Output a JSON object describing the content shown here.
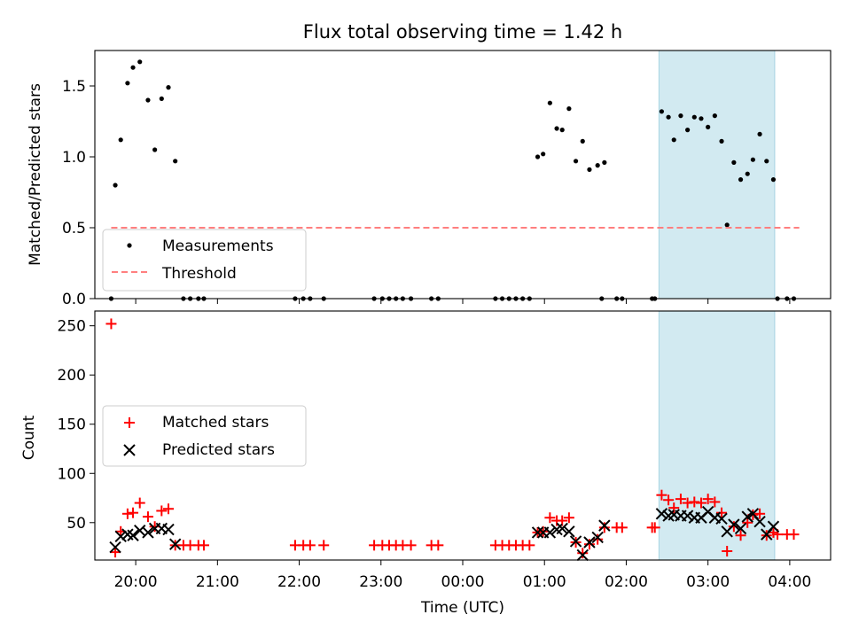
{
  "chart_data": [
    {
      "type": "scatter",
      "title": "Flux total observing time = 1.42 h",
      "xlabel": "",
      "ylabel": "Matched/Predicted stars",
      "ylim": [
        0,
        1.75
      ],
      "xlim": [
        "19:30",
        "04:30"
      ],
      "yticks": [
        0.0,
        0.5,
        1.0,
        1.5
      ],
      "ytick_labels": [
        "0.0",
        "0.5",
        "1.0",
        "1.5"
      ],
      "highlight_span": [
        "02:24",
        "03:49"
      ],
      "highlight_color": "#add8e6",
      "legend_position": "lower-left",
      "series": [
        {
          "name": "Measurements",
          "marker": "dot",
          "color": "#000000",
          "points": [
            [
              "19:42",
              0.0
            ],
            [
              "19:45",
              0.8
            ],
            [
              "19:49",
              1.12
            ],
            [
              "19:54",
              1.52
            ],
            [
              "19:58",
              1.63
            ],
            [
              "20:03",
              1.67
            ],
            [
              "20:09",
              1.4
            ],
            [
              "20:14",
              1.05
            ],
            [
              "20:19",
              1.41
            ],
            [
              "20:24",
              1.49
            ],
            [
              "20:29",
              0.97
            ],
            [
              "20:35",
              0.0
            ],
            [
              "20:40",
              0.0
            ],
            [
              "20:46",
              0.0
            ],
            [
              "20:50",
              0.0
            ],
            [
              "21:57",
              0.0
            ],
            [
              "22:03",
              0.0
            ],
            [
              "22:08",
              0.0
            ],
            [
              "22:18",
              0.0
            ],
            [
              "22:55",
              0.0
            ],
            [
              "23:01",
              0.0
            ],
            [
              "23:06",
              0.0
            ],
            [
              "23:11",
              0.0
            ],
            [
              "23:16",
              0.0
            ],
            [
              "23:22",
              0.0
            ],
            [
              "23:37",
              0.0
            ],
            [
              "23:42",
              0.0
            ],
            [
              "00:24",
              0.0
            ],
            [
              "00:29",
              0.0
            ],
            [
              "00:34",
              0.0
            ],
            [
              "00:39",
              0.0
            ],
            [
              "00:44",
              0.0
            ],
            [
              "00:49",
              0.0
            ],
            [
              "00:55",
              1.0
            ],
            [
              "00:59",
              1.02
            ],
            [
              "01:04",
              1.38
            ],
            [
              "01:09",
              1.2
            ],
            [
              "01:13",
              1.19
            ],
            [
              "01:18",
              1.34
            ],
            [
              "01:23",
              0.97
            ],
            [
              "01:28",
              1.11
            ],
            [
              "01:33",
              0.91
            ],
            [
              "01:39",
              0.94
            ],
            [
              "01:44",
              0.96
            ],
            [
              "01:42",
              0.0
            ],
            [
              "01:53",
              0.0
            ],
            [
              "01:57",
              0.0
            ],
            [
              "02:19",
              0.0
            ],
            [
              "02:21",
              0.0
            ],
            [
              "02:26",
              1.32
            ],
            [
              "02:31",
              1.28
            ],
            [
              "02:35",
              1.12
            ],
            [
              "02:40",
              1.29
            ],
            [
              "02:45",
              1.19
            ],
            [
              "02:50",
              1.28
            ],
            [
              "02:55",
              1.27
            ],
            [
              "03:00",
              1.21
            ],
            [
              "03:05",
              1.29
            ],
            [
              "03:10",
              1.11
            ],
            [
              "03:14",
              0.52
            ],
            [
              "03:19",
              0.96
            ],
            [
              "03:24",
              0.84
            ],
            [
              "03:29",
              0.88
            ],
            [
              "03:33",
              0.98
            ],
            [
              "03:38",
              1.16
            ],
            [
              "03:43",
              0.97
            ],
            [
              "03:48",
              0.84
            ],
            [
              "03:51",
              0.0
            ],
            [
              "03:58",
              0.0
            ],
            [
              "04:03",
              0.0
            ]
          ]
        },
        {
          "name": "Threshold",
          "marker": "dashed-line",
          "color": "#ff7f7f",
          "points": [
            [
              "19:42",
              0.5
            ],
            [
              "04:07",
              0.5
            ]
          ]
        }
      ]
    },
    {
      "type": "scatter",
      "title": "",
      "xlabel": "Time (UTC)",
      "ylabel": "Count",
      "ylim": [
        12,
        265
      ],
      "xlim": [
        "19:30",
        "04:30"
      ],
      "yticks": [
        50,
        100,
        150,
        200,
        250
      ],
      "ytick_labels": [
        "50",
        "100",
        "150",
        "200",
        "250"
      ],
      "xticks": [
        "20:00",
        "21:00",
        "22:00",
        "23:00",
        "00:00",
        "01:00",
        "02:00",
        "03:00",
        "04:00"
      ],
      "highlight_span": [
        "02:24",
        "03:49"
      ],
      "highlight_color": "#add8e6",
      "legend_position": "center-left",
      "series": [
        {
          "name": "Matched stars",
          "marker": "plus",
          "color": "#ff0000",
          "points": [
            [
              "19:42",
              252
            ],
            [
              "19:45",
              20
            ],
            [
              "19:49",
              41
            ],
            [
              "19:54",
              59
            ],
            [
              "19:58",
              60
            ],
            [
              "20:03",
              70
            ],
            [
              "20:09",
              56
            ],
            [
              "20:14",
              46
            ],
            [
              "20:19",
              62
            ],
            [
              "20:24",
              64
            ],
            [
              "20:29",
              27
            ],
            [
              "20:35",
              27
            ],
            [
              "20:40",
              27
            ],
            [
              "20:46",
              27
            ],
            [
              "20:50",
              27
            ],
            [
              "21:57",
              27
            ],
            [
              "22:03",
              27
            ],
            [
              "22:08",
              27
            ],
            [
              "22:18",
              27
            ],
            [
              "22:55",
              27
            ],
            [
              "23:01",
              27
            ],
            [
              "23:06",
              27
            ],
            [
              "23:11",
              27
            ],
            [
              "23:16",
              27
            ],
            [
              "23:22",
              27
            ],
            [
              "23:37",
              27
            ],
            [
              "23:42",
              27
            ],
            [
              "00:24",
              27
            ],
            [
              "00:29",
              27
            ],
            [
              "00:34",
              27
            ],
            [
              "00:39",
              27
            ],
            [
              "00:44",
              27
            ],
            [
              "00:49",
              27
            ],
            [
              "00:55",
              40
            ],
            [
              "00:59",
              41
            ],
            [
              "01:04",
              55
            ],
            [
              "01:09",
              52
            ],
            [
              "01:13",
              52
            ],
            [
              "01:18",
              55
            ],
            [
              "01:23",
              30
            ],
            [
              "01:28",
              19
            ],
            [
              "01:33",
              28
            ],
            [
              "01:39",
              33
            ],
            [
              "01:44",
              45
            ],
            [
              "01:53",
              45
            ],
            [
              "01:57",
              45
            ],
            [
              "02:19",
              45
            ],
            [
              "02:21",
              45
            ],
            [
              "02:26",
              78
            ],
            [
              "02:31",
              73
            ],
            [
              "02:35",
              65
            ],
            [
              "02:40",
              74
            ],
            [
              "02:45",
              70
            ],
            [
              "02:50",
              71
            ],
            [
              "02:55",
              70
            ],
            [
              "03:00",
              74
            ],
            [
              "03:05",
              71
            ],
            [
              "03:10",
              60
            ],
            [
              "03:14",
              21
            ],
            [
              "03:19",
              46
            ],
            [
              "03:24",
              37
            ],
            [
              "03:29",
              50
            ],
            [
              "03:33",
              58
            ],
            [
              "03:38",
              59
            ],
            [
              "03:43",
              37
            ],
            [
              "03:48",
              40
            ],
            [
              "03:51",
              38
            ],
            [
              "03:58",
              38
            ],
            [
              "04:03",
              38
            ]
          ]
        },
        {
          "name": "Predicted stars",
          "marker": "x",
          "color": "#000000",
          "points": [
            [
              "19:45",
              25
            ],
            [
              "19:49",
              36
            ],
            [
              "19:54",
              38
            ],
            [
              "19:58",
              37
            ],
            [
              "20:03",
              42
            ],
            [
              "20:09",
              40
            ],
            [
              "20:14",
              44
            ],
            [
              "20:19",
              44
            ],
            [
              "20:24",
              43
            ],
            [
              "20:29",
              28
            ],
            [
              "00:55",
              40
            ],
            [
              "00:59",
              40
            ],
            [
              "01:04",
              40
            ],
            [
              "01:09",
              43
            ],
            [
              "01:13",
              44
            ],
            [
              "01:18",
              41
            ],
            [
              "01:23",
              31
            ],
            [
              "01:28",
              17
            ],
            [
              "01:33",
              30
            ],
            [
              "01:39",
              35
            ],
            [
              "01:44",
              47
            ],
            [
              "02:26",
              59
            ],
            [
              "02:31",
              57
            ],
            [
              "02:35",
              58
            ],
            [
              "02:40",
              57
            ],
            [
              "02:45",
              57
            ],
            [
              "02:50",
              55
            ],
            [
              "02:55",
              55
            ],
            [
              "03:00",
              61
            ],
            [
              "03:05",
              55
            ],
            [
              "03:10",
              54
            ],
            [
              "03:14",
              41
            ],
            [
              "03:19",
              48
            ],
            [
              "03:24",
              44
            ],
            [
              "03:29",
              56
            ],
            [
              "03:33",
              59
            ],
            [
              "03:38",
              51
            ],
            [
              "03:43",
              38
            ],
            [
              "03:48",
              46
            ]
          ]
        }
      ]
    }
  ]
}
